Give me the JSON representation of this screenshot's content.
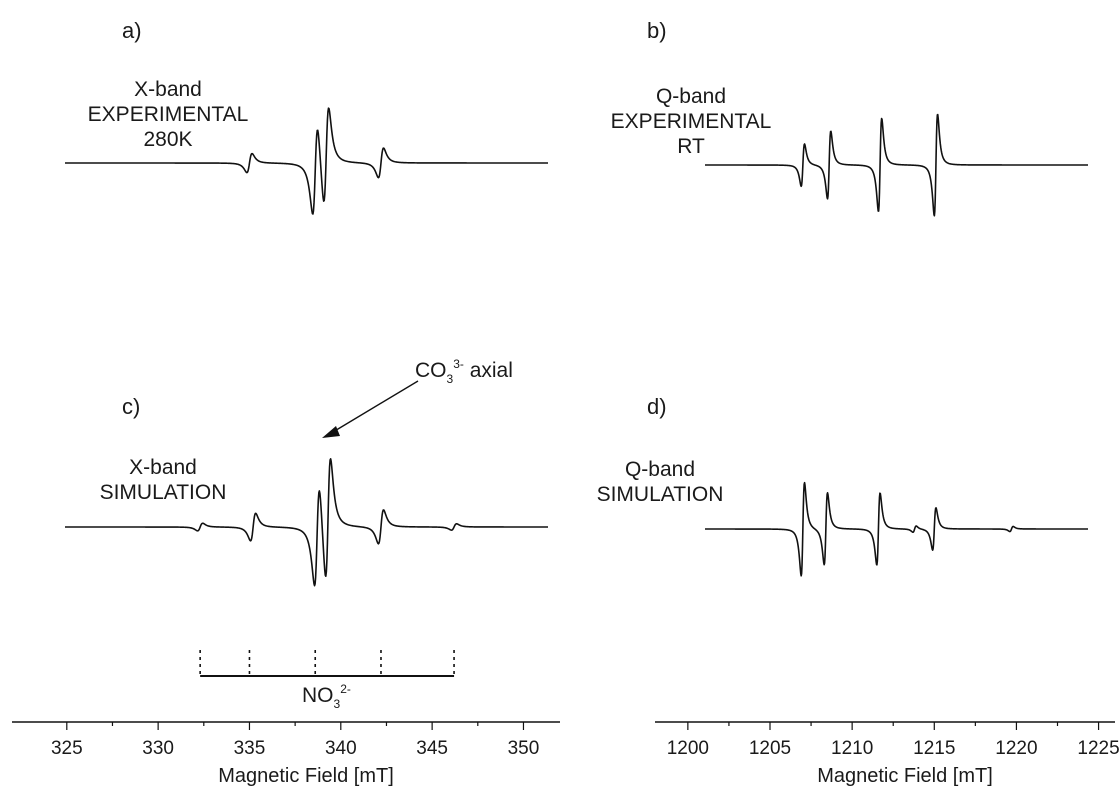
{
  "panels": {
    "a": {
      "label": "a)",
      "line1": "X-band",
      "line2": "EXPERIMENTAL",
      "line3": "280K"
    },
    "b": {
      "label": "b)",
      "line1": "Q-band",
      "line2": "EXPERIMENTAL",
      "line3": "RT"
    },
    "c": {
      "label": "c)",
      "line1": "X-band",
      "line2": "SIMULATION"
    },
    "d": {
      "label": "d)",
      "line1": "Q-band",
      "line2": "SIMULATION"
    }
  },
  "annotations": {
    "co3": {
      "main": "CO",
      "sub": "3",
      "sup": "3-",
      "tail": " axial"
    },
    "no3": {
      "main": "NO",
      "sub": "3",
      "sup": "2-"
    }
  },
  "chart_data": [
    {
      "type": "line",
      "panel": "a",
      "xlabel": "Magnetic Field [mT]",
      "xlim": [
        322,
        352
      ],
      "xticks": [
        325,
        330,
        335,
        340,
        345,
        350
      ],
      "lines": [
        {
          "x": 335.0,
          "amp": 0.45
        },
        {
          "x": 338.6,
          "amp": 2.2
        },
        {
          "x": 339.2,
          "amp": 2.4
        },
        {
          "x": 342.2,
          "amp": 0.7
        }
      ]
    },
    {
      "type": "line",
      "panel": "c",
      "xlabel": "Magnetic Field [mT]",
      "xlim": [
        322,
        352
      ],
      "xticks": [
        325,
        330,
        335,
        340,
        345,
        350
      ],
      "lines": [
        {
          "x": 332.3,
          "amp": 0.18
        },
        {
          "x": 335.2,
          "amp": 0.65
        },
        {
          "x": 338.7,
          "amp": 2.5
        },
        {
          "x": 339.3,
          "amp": 3.0
        },
        {
          "x": 342.2,
          "amp": 0.8
        },
        {
          "x": 346.2,
          "amp": 0.15
        }
      ],
      "no3_sticks": [
        332.3,
        335.0,
        338.6,
        342.2,
        346.2
      ]
    },
    {
      "type": "line",
      "panel": "b",
      "xlabel": "Magnetic Field [mT]",
      "xlim": [
        1198,
        1226
      ],
      "xticks": [
        1200,
        1205,
        1210,
        1215,
        1220,
        1225
      ],
      "lines": [
        {
          "x": 1207.0,
          "amp": 1.0
        },
        {
          "x": 1208.6,
          "amp": 1.6
        },
        {
          "x": 1211.7,
          "amp": 2.2
        },
        {
          "x": 1215.1,
          "amp": 2.4
        }
      ]
    },
    {
      "type": "line",
      "panel": "d",
      "xlabel": "Magnetic Field [mT]",
      "xlim": [
        1198,
        1226
      ],
      "xticks": [
        1200,
        1205,
        1210,
        1215,
        1220,
        1225
      ],
      "lines": [
        {
          "x": 1207.0,
          "amp": 2.2
        },
        {
          "x": 1208.4,
          "amp": 1.7
        },
        {
          "x": 1211.6,
          "amp": 1.7
        },
        {
          "x": 1213.8,
          "amp": 0.15
        },
        {
          "x": 1215.0,
          "amp": 1.0
        },
        {
          "x": 1219.7,
          "amp": 0.12
        }
      ]
    }
  ]
}
